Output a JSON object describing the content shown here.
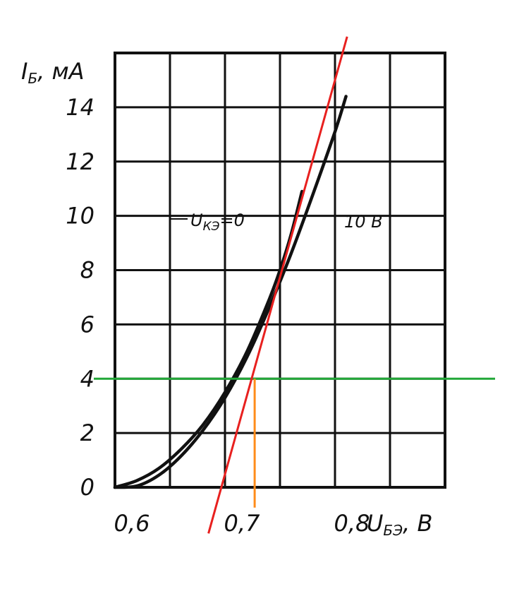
{
  "chart_data": {
    "type": "line",
    "ylabel": "I",
    "ylabel_sub": "Б",
    "ylabel_unit": ", мА",
    "xlabel": "U",
    "xlabel_sub": "БЭ",
    "xlabel_unit": ", В",
    "xlim": [
      0.6,
      0.9
    ],
    "ylim": [
      0,
      16
    ],
    "grid": true,
    "x_ticks": [
      {
        "value": 0.6,
        "label": "0,6"
      },
      {
        "value": 0.7,
        "label": "0,7"
      },
      {
        "value": 0.8,
        "label": "0,8"
      }
    ],
    "y_ticks": [
      {
        "value": 0,
        "label": "0"
      },
      {
        "value": 2,
        "label": "2"
      },
      {
        "value": 4,
        "label": "4"
      },
      {
        "value": 6,
        "label": "6"
      },
      {
        "value": 8,
        "label": "8"
      },
      {
        "value": 10,
        "label": "10"
      },
      {
        "value": 12,
        "label": "12"
      },
      {
        "value": 14,
        "label": "14"
      }
    ],
    "series": [
      {
        "name": "U_КЭ=0",
        "label_text": "U",
        "label_sub": "КЭ",
        "label_tail": "=0",
        "x": [
          0.6,
          0.62,
          0.64,
          0.66,
          0.68,
          0.7,
          0.72,
          0.74,
          0.75,
          0.76,
          0.77
        ],
        "y": [
          0.0,
          0.25,
          0.7,
          1.4,
          2.3,
          3.5,
          5.0,
          6.9,
          8.0,
          9.3,
          10.9
        ]
      },
      {
        "name": "10 В",
        "x": [
          0.6,
          0.62,
          0.64,
          0.66,
          0.68,
          0.7,
          0.72,
          0.74,
          0.76,
          0.78,
          0.8,
          0.81
        ],
        "y": [
          0.0,
          0.05,
          0.45,
          1.15,
          2.1,
          3.3,
          4.8,
          6.6,
          8.6,
          10.8,
          13.1,
          14.4
        ]
      }
    ],
    "annotations": [
      {
        "type": "hline",
        "y": 4.0,
        "color": "#22a838"
      },
      {
        "type": "vline",
        "x": 0.727,
        "y_from": -0.75,
        "y_to": 4.0,
        "color": "#ff8c1a"
      },
      {
        "type": "line",
        "x1": 0.685,
        "y1": -1.7,
        "x2": 0.811,
        "y2": 16.6,
        "color": "#e8201f"
      }
    ]
  }
}
